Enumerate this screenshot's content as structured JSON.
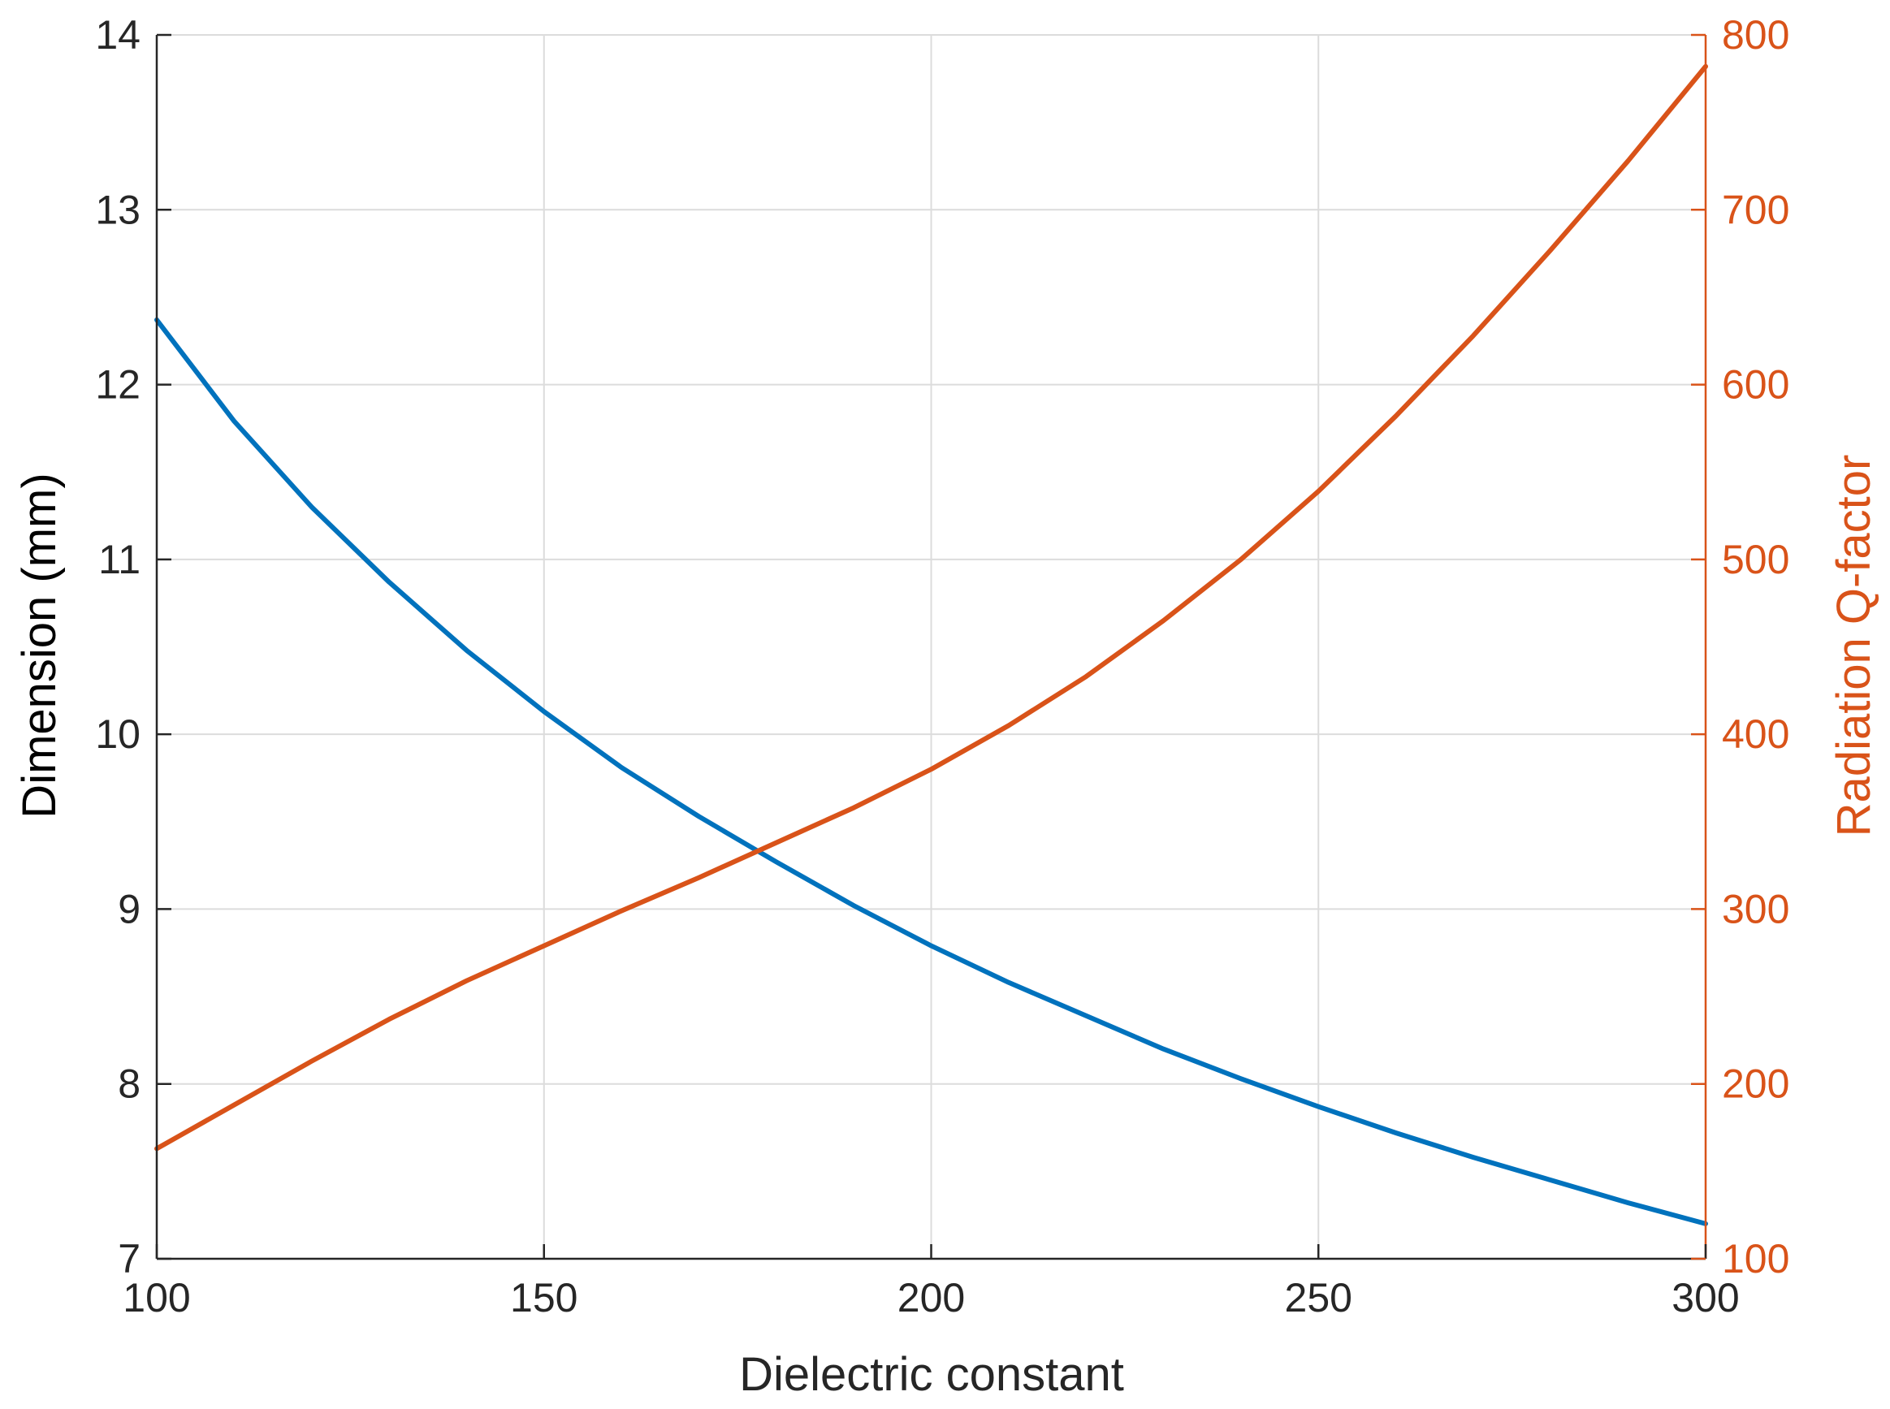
{
  "colors": {
    "left_series": "#0072bd",
    "right_series": "#d95319",
    "axis": "#262626",
    "grid": "#dcdcdc"
  },
  "chart_data": {
    "type": "line",
    "title": "",
    "xlabel": "Dielectric constant",
    "ylabel_left": "Dimension (mm)",
    "ylabel_right": "Radiation Q-factor",
    "xlim": [
      100,
      300
    ],
    "ylim_left": [
      7,
      14
    ],
    "ylim_right": [
      100,
      800
    ],
    "grid": true,
    "x_ticks": [
      "100",
      "150",
      "200",
      "250",
      "300"
    ],
    "y_left_ticks": [
      "7",
      "8",
      "9",
      "10",
      "11",
      "12",
      "13",
      "14"
    ],
    "y_right_ticks": [
      "100",
      "200",
      "300",
      "400",
      "500",
      "600",
      "700",
      "800"
    ],
    "x": [
      100,
      110,
      120,
      130,
      140,
      150,
      160,
      170,
      180,
      190,
      200,
      210,
      220,
      230,
      240,
      250,
      260,
      270,
      280,
      290,
      300
    ],
    "series": [
      {
        "axis": "left",
        "values": [
          12.37,
          11.79,
          11.3,
          10.87,
          10.48,
          10.13,
          9.81,
          9.53,
          9.27,
          9.02,
          8.79,
          8.58,
          8.39,
          8.2,
          8.03,
          7.87,
          7.72,
          7.58,
          7.45,
          7.32,
          7.2
        ]
      },
      {
        "axis": "right",
        "values": [
          163,
          188,
          213,
          237,
          259,
          279,
          299,
          318,
          338,
          358,
          380,
          405,
          433,
          465,
          500,
          539,
          582,
          628,
          677,
          728,
          782
        ]
      }
    ]
  }
}
